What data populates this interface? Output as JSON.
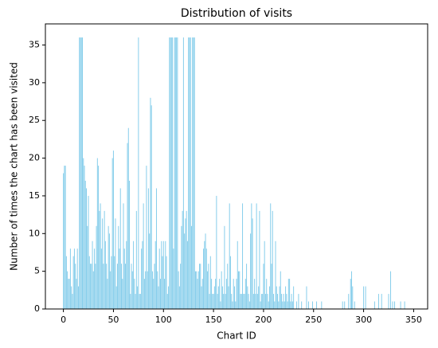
{
  "chart_data": {
    "type": "bar",
    "title": "Distribution of visits",
    "x_label": "Chart ID",
    "y_label": "Number of times the chart has been visited",
    "color": "#87ceeb",
    "x": [
      0,
      1,
      2,
      3,
      4,
      5,
      6,
      7,
      8,
      9,
      10,
      11,
      12,
      13,
      14,
      15,
      16,
      17,
      18,
      19,
      20,
      21,
      22,
      23,
      24,
      25,
      26,
      27,
      28,
      29,
      30,
      31,
      32,
      33,
      34,
      35,
      36,
      37,
      38,
      39,
      40,
      41,
      42,
      43,
      44,
      45,
      46,
      47,
      48,
      49,
      50,
      51,
      52,
      53,
      54,
      55,
      56,
      57,
      58,
      59,
      60,
      61,
      62,
      63,
      64,
      65,
      66,
      67,
      68,
      69,
      70,
      71,
      72,
      73,
      74,
      75,
      76,
      77,
      78,
      79,
      80,
      81,
      82,
      83,
      84,
      85,
      86,
      87,
      88,
      89,
      90,
      91,
      92,
      93,
      94,
      95,
      96,
      97,
      98,
      99,
      100,
      101,
      102,
      103,
      104,
      105,
      106,
      107,
      108,
      109,
      110,
      111,
      112,
      113,
      114,
      115,
      116,
      117,
      118,
      119,
      120,
      121,
      122,
      123,
      124,
      125,
      126,
      127,
      128,
      129,
      130,
      131,
      132,
      133,
      134,
      135,
      136,
      137,
      138,
      139,
      140,
      141,
      142,
      143,
      144,
      145,
      146,
      147,
      148,
      149,
      150,
      151,
      152,
      153,
      154,
      155,
      156,
      157,
      158,
      159,
      160,
      161,
      162,
      163,
      164,
      165,
      166,
      167,
      168,
      169,
      170,
      171,
      172,
      173,
      174,
      175,
      176,
      177,
      178,
      179,
      180,
      181,
      182,
      183,
      184,
      185,
      186,
      187,
      188,
      189,
      190,
      191,
      192,
      193,
      194,
      195,
      196,
      197,
      198,
      199,
      200,
      201,
      202,
      203,
      204,
      205,
      206,
      207,
      208,
      209,
      210,
      211,
      212,
      213,
      214,
      215,
      216,
      217,
      218,
      219,
      220,
      221,
      222,
      223,
      224,
      225,
      226,
      227,
      228,
      229,
      230,
      231,
      232,
      233,
      234,
      235,
      236,
      237,
      238,
      239,
      240,
      241,
      242,
      243,
      244,
      245,
      246,
      247,
      248,
      249,
      250,
      253,
      258,
      279,
      281,
      285,
      287,
      288,
      289,
      291,
      300,
      302,
      311,
      315,
      318,
      325,
      327,
      329,
      331,
      337,
      341
    ],
    "values": [
      18,
      19,
      19,
      7,
      5,
      4,
      4,
      8,
      3,
      2,
      7,
      8,
      6,
      4,
      8,
      3,
      36,
      36,
      36,
      36,
      20,
      19,
      17,
      16,
      11,
      15,
      7,
      6,
      6,
      9,
      5,
      8,
      6,
      11,
      20,
      19,
      13,
      14,
      8,
      12,
      6,
      13,
      9,
      6,
      4,
      11,
      10,
      5,
      7,
      20,
      21,
      7,
      12,
      3,
      6,
      11,
      8,
      16,
      6,
      4,
      14,
      8,
      6,
      9,
      22,
      24,
      17,
      2,
      6,
      5,
      9,
      4,
      2,
      13,
      3,
      36,
      2,
      2,
      8,
      9,
      14,
      4,
      5,
      19,
      5,
      16,
      10,
      28,
      27,
      5,
      4,
      6,
      9,
      16,
      5,
      3,
      8,
      4,
      9,
      7,
      9,
      4,
      9,
      7,
      2,
      3,
      36,
      36,
      36,
      36,
      8,
      36,
      36,
      36,
      36,
      5,
      3,
      6,
      11,
      13,
      36,
      10,
      12,
      13,
      9,
      36,
      36,
      36,
      11,
      36,
      36,
      36,
      5,
      5,
      4,
      5,
      6,
      6,
      3,
      4,
      8,
      9,
      10,
      8,
      5,
      6,
      2,
      7,
      4,
      2,
      2,
      3,
      4,
      15,
      2,
      3,
      4,
      1,
      5,
      3,
      2,
      11,
      2,
      4,
      6,
      3,
      14,
      7,
      2,
      1,
      4,
      3,
      1,
      4,
      9,
      5,
      5,
      2,
      2,
      14,
      2,
      2,
      4,
      6,
      3,
      2,
      1,
      10,
      14,
      12,
      2,
      4,
      2,
      14,
      2,
      3,
      13,
      1,
      2,
      2,
      6,
      9,
      2,
      4,
      2,
      1,
      3,
      14,
      6,
      13,
      2,
      1,
      9,
      3,
      2,
      1,
      3,
      5,
      2,
      1,
      2,
      1,
      3,
      2,
      1,
      4,
      4,
      1,
      2,
      1,
      3,
      0,
      0,
      1,
      0,
      2,
      0,
      0,
      1,
      0,
      0,
      0,
      0,
      3,
      0,
      1,
      0,
      0,
      0,
      1,
      0,
      1,
      1,
      1,
      1,
      2,
      4,
      5,
      3,
      1,
      3,
      3,
      1,
      2,
      2,
      2,
      5,
      1,
      1,
      1,
      1
    ],
    "xlim": [
      -18,
      364
    ],
    "ylim": [
      0,
      37.8
    ],
    "xticks": [
      0,
      50,
      100,
      150,
      200,
      250,
      300,
      350
    ],
    "yticks": [
      0,
      5,
      10,
      15,
      20,
      25,
      30,
      35
    ]
  }
}
